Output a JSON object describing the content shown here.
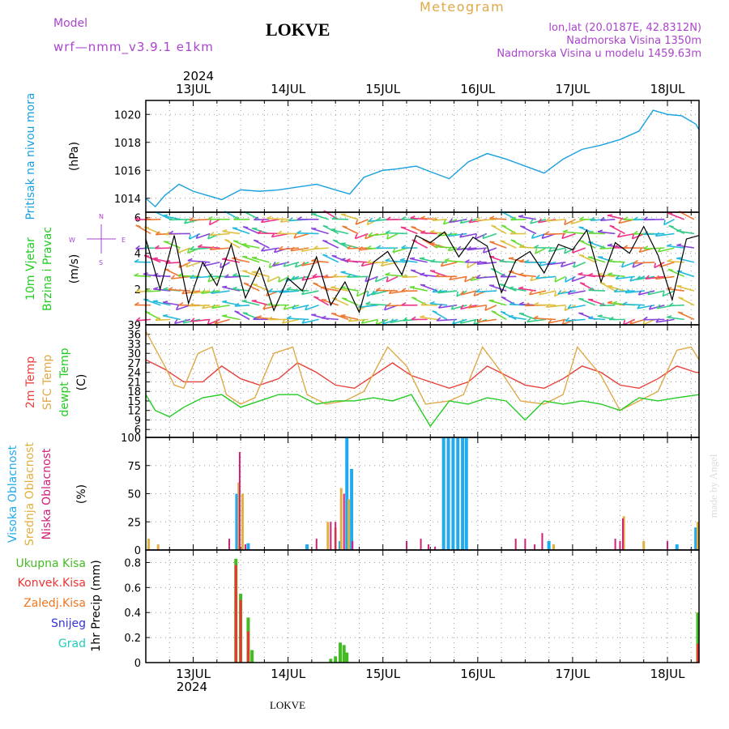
{
  "header": {
    "model_label": "Model",
    "model_name": "wrf—nmm_v3.9.1 e1km",
    "title": "LOKVE",
    "meteogram_label": "Meteogram",
    "lonlat": "lon,lat (20.0187E, 42.8312N)",
    "elevation": "Nadmorska Visina 1350m",
    "model_elevation": "Nadmorska Visina u modelu 1459.63m"
  },
  "footer": {
    "location": "LOKVE",
    "watermark": "made by Angel"
  },
  "colors": {
    "pressure": "#1aa0e0",
    "temp2m": "#e8403a",
    "sfc": "#e0a848",
    "dewpt": "#22cc22",
    "high_cloud": "#22aaee",
    "mid_cloud": "#e0b040",
    "low_cloud": "#d0207a",
    "precip_total": "#44bb22",
    "precip_conv": "#ee3333",
    "precip_frozen": "#ee7722",
    "snow": "#3333dd",
    "graupel": "#22ccbb",
    "model": "#aa44cc",
    "wind_speed": "#000000"
  },
  "wind_compass": {
    "north": "N",
    "south": "S",
    "west": "W",
    "east": "E"
  },
  "chart_data": [
    {
      "type": "line",
      "title": "Pritisak na nivou mora",
      "ylabel": "(hPa)",
      "x_unit": "days from 2024-07-12 12:00",
      "x_range": [
        0,
        5.833
      ],
      "x_tick_labels": [
        "13JUL",
        "14JUL",
        "15JUL",
        "16JUL",
        "17JUL",
        "18JUL"
      ],
      "year_label": "2024",
      "ylim": [
        1013,
        1021
      ],
      "yticks": [
        1014,
        1016,
        1018,
        1020
      ],
      "grid": true,
      "series": [
        {
          "name": "Pritisak na nivou mora",
          "x": [
            0,
            0.1,
            0.2,
            0.35,
            0.5,
            0.65,
            0.8,
            1.0,
            1.2,
            1.4,
            1.6,
            1.8,
            2.0,
            2.15,
            2.3,
            2.5,
            2.65,
            2.85,
            3.0,
            3.2,
            3.4,
            3.6,
            3.8,
            4.0,
            4.2,
            4.4,
            4.6,
            4.8,
            5.0,
            5.2,
            5.35,
            5.5,
            5.65,
            5.8,
            5.833
          ],
          "values": [
            1014.0,
            1013.4,
            1014.2,
            1015.0,
            1014.5,
            1014.2,
            1013.9,
            1014.6,
            1014.5,
            1014.6,
            1014.8,
            1015.0,
            1014.6,
            1014.3,
            1015.5,
            1016.0,
            1016.1,
            1016.3,
            1015.9,
            1015.4,
            1016.6,
            1017.2,
            1016.8,
            1016.3,
            1015.8,
            1016.8,
            1017.5,
            1017.8,
            1018.2,
            1018.8,
            1020.3,
            1020.0,
            1019.9,
            1019.3,
            1018.9
          ]
        }
      ]
    },
    {
      "type": "line",
      "title": "10m Vjetar Brzina i Pravac",
      "ylabel": "(m/s)",
      "x_unit": "days from 2024-07-12 12:00",
      "x_range": [
        0,
        5.833
      ],
      "ylim": [
        0,
        6.3
      ],
      "yticks": [
        2,
        4,
        6
      ],
      "grid": true,
      "series": [
        {
          "name": "10m Vjetar Brzina",
          "x": [
            0,
            0.15,
            0.3,
            0.45,
            0.6,
            0.75,
            0.9,
            1.05,
            1.2,
            1.35,
            1.5,
            1.65,
            1.8,
            1.95,
            2.1,
            2.25,
            2.4,
            2.55,
            2.7,
            2.85,
            3.0,
            3.15,
            3.3,
            3.45,
            3.6,
            3.75,
            3.9,
            4.05,
            4.2,
            4.35,
            4.5,
            4.65,
            4.8,
            4.95,
            5.1,
            5.25,
            5.4,
            5.55,
            5.7,
            5.833
          ],
          "values": [
            4.8,
            2.0,
            5.0,
            1.2,
            3.5,
            2.2,
            4.5,
            1.5,
            3.2,
            0.8,
            2.6,
            1.9,
            3.8,
            1.1,
            2.4,
            0.7,
            3.5,
            4.1,
            2.8,
            5.0,
            4.6,
            5.2,
            3.8,
            4.9,
            4.4,
            1.8,
            3.6,
            4.1,
            2.9,
            4.5,
            4.2,
            5.3,
            2.4,
            4.6,
            4.0,
            5.5,
            3.9,
            1.4,
            4.8,
            5.0
          ]
        }
      ]
    },
    {
      "type": "line",
      "title": "2m Temp / SFC Temp / dewpt Temp",
      "ylabel": "(C)",
      "x_unit": "days from 2024-07-12 12:00",
      "x_range": [
        0,
        5.833
      ],
      "ylim": [
        3.5,
        39
      ],
      "yticks": [
        6,
        9,
        12,
        15,
        18,
        21,
        24,
        27,
        30,
        33,
        36,
        39
      ],
      "grid": true,
      "series": [
        {
          "name": "2m Temp",
          "x": [
            0,
            0.2,
            0.4,
            0.6,
            0.8,
            1.0,
            1.2,
            1.4,
            1.6,
            1.8,
            2.0,
            2.2,
            2.4,
            2.6,
            2.8,
            3.0,
            3.2,
            3.4,
            3.6,
            3.8,
            4.0,
            4.2,
            4.4,
            4.6,
            4.8,
            5.0,
            5.2,
            5.4,
            5.6,
            5.8,
            5.833
          ],
          "values": [
            28,
            25,
            21,
            21,
            26,
            22,
            20,
            22,
            27,
            24,
            20,
            19,
            23,
            27,
            23,
            21,
            19,
            21,
            26,
            23,
            20,
            19,
            22,
            26,
            24,
            20,
            19,
            22,
            26,
            24,
            24
          ]
        },
        {
          "name": "SFC Temp",
          "x": [
            0,
            0.2,
            0.3,
            0.4,
            0.55,
            0.7,
            0.85,
            1.0,
            1.15,
            1.35,
            1.55,
            1.7,
            1.9,
            2.1,
            2.3,
            2.55,
            2.75,
            2.95,
            3.2,
            3.35,
            3.55,
            3.75,
            3.95,
            4.2,
            4.4,
            4.55,
            4.8,
            5.0,
            5.2,
            5.4,
            5.6,
            5.75,
            5.833
          ],
          "values": [
            37,
            26,
            20,
            19,
            30,
            32,
            17,
            14,
            16,
            30,
            32,
            17,
            14,
            15,
            18,
            32,
            26,
            14,
            15,
            17,
            32,
            24,
            15,
            14,
            17,
            32,
            23,
            12,
            15,
            18,
            31,
            32,
            28
          ]
        },
        {
          "name": "dewpt Temp",
          "x": [
            0,
            0.1,
            0.25,
            0.4,
            0.6,
            0.8,
            1.0,
            1.2,
            1.4,
            1.6,
            1.8,
            2.0,
            2.2,
            2.4,
            2.6,
            2.8,
            3.0,
            3.2,
            3.4,
            3.6,
            3.8,
            4.0,
            4.2,
            4.4,
            4.6,
            4.8,
            5.0,
            5.2,
            5.4,
            5.6,
            5.833
          ],
          "values": [
            17,
            12,
            10,
            13,
            16,
            17,
            13,
            15,
            17,
            17,
            14,
            15,
            15,
            16,
            15,
            17,
            7,
            15,
            14,
            16,
            15,
            9,
            15,
            14,
            15,
            14,
            12,
            16,
            15,
            16,
            17
          ]
        }
      ]
    },
    {
      "type": "bar",
      "title": "Visoka Oblacnost / Srednja Oblacnost / Niska Oblacnost",
      "ylabel": "(%)",
      "x_unit": "days from 2024-07-12 12:00",
      "x_range": [
        0,
        5.833
      ],
      "ylim": [
        0,
        100
      ],
      "yticks": [
        0,
        25,
        50,
        75,
        100
      ],
      "grid": true,
      "series": [
        {
          "name": "Visoka Oblacnost",
          "x": [
            0.96,
            1.08,
            1.7,
            2.05,
            2.12,
            2.17,
            3.14,
            3.19,
            3.24,
            3.29,
            3.34,
            3.38,
            4.25,
            5.6,
            5.8
          ],
          "values": [
            50,
            6,
            5,
            8,
            100,
            72,
            100,
            100,
            100,
            100,
            100,
            100,
            8,
            5,
            20
          ]
        },
        {
          "name": "Srednja Oblacnost",
          "x": [
            0.03,
            0.13,
            0.98,
            1.02,
            1.92,
            2.0,
            2.06,
            2.14,
            4.3,
            5.04,
            5.25,
            5.82
          ],
          "values": [
            10,
            5,
            60,
            50,
            25,
            20,
            55,
            45,
            5,
            30,
            8,
            25
          ]
        },
        {
          "name": "Niska Oblacnost",
          "x": [
            0.88,
            0.99,
            1.05,
            1.8,
            1.95,
            2.0,
            2.09,
            2.18,
            2.75,
            2.9,
            2.98,
            3.05,
            3.9,
            4.0,
            4.1,
            4.18,
            4.95,
            5.0,
            5.03,
            5.5
          ],
          "values": [
            10,
            87,
            5,
            10,
            25,
            25,
            50,
            8,
            8,
            10,
            5,
            3,
            10,
            10,
            5,
            15,
            10,
            8,
            28,
            8
          ]
        }
      ]
    },
    {
      "type": "bar",
      "title": "1hr Precip",
      "ylabel": "(mm)",
      "x_unit": "days from 2024-07-12 12:00",
      "x_range": [
        0,
        5.833
      ],
      "ylim": [
        0,
        0.9
      ],
      "yticks": [
        0,
        0.2,
        0.4,
        0.6,
        0.8
      ],
      "grid": true,
      "series": [
        {
          "name": "Ukupna Kisa",
          "x": [
            0.95,
            1.0,
            1.08,
            1.12,
            1.95,
            2.0,
            2.05,
            2.09,
            2.12,
            5.82
          ],
          "values": [
            0.83,
            0.55,
            0.36,
            0.1,
            0.03,
            0.05,
            0.16,
            0.14,
            0.08,
            0.4
          ]
        },
        {
          "name": "Konvek.Kisa",
          "x": [
            0.95,
            1.0,
            1.08,
            5.82
          ],
          "values": [
            0.78,
            0.5,
            0.25,
            0.15
          ]
        },
        {
          "name": "Zaledj.Kisa",
          "x": [],
          "values": []
        },
        {
          "name": "Snijeg",
          "x": [],
          "values": []
        },
        {
          "name": "Grad",
          "x": [],
          "values": []
        }
      ]
    }
  ]
}
